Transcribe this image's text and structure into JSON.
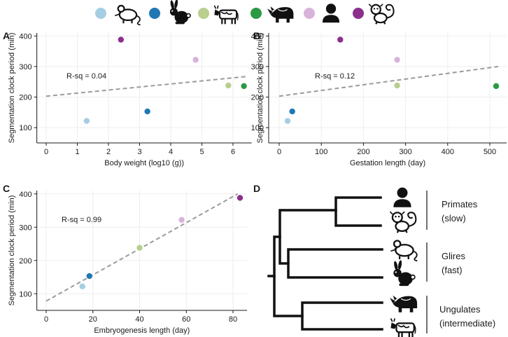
{
  "legend": [
    {
      "species": "mouse",
      "color": "#a6cee3"
    },
    {
      "species": "rabbit",
      "color": "#1f78b4"
    },
    {
      "species": "cattle",
      "color": "#b8cf8e"
    },
    {
      "species": "rhinoceros",
      "color": "#2a9a44"
    },
    {
      "species": "human",
      "color": "#d9b3dc"
    },
    {
      "species": "marmoset",
      "color": "#8b2f8c"
    }
  ],
  "chart_data": [
    {
      "id": "A",
      "panel_label": "A",
      "type": "scatter",
      "xlabel": "Body weight (log10 (g))",
      "ylabel": "Segmentation clock period (min)",
      "xlim": [
        -0.3,
        6.6
      ],
      "ylim": [
        50,
        410
      ],
      "xticks": [
        0,
        1,
        2,
        3,
        4,
        5,
        6
      ],
      "yticks": [
        100,
        200,
        300,
        400
      ],
      "annotation": "R-sq = 0.04",
      "trendline": [
        [
          0,
          203
        ],
        [
          6.4,
          267
        ]
      ],
      "points": [
        {
          "species": "mouse",
          "x": 1.3,
          "y": 122
        },
        {
          "species": "rabbit",
          "x": 3.25,
          "y": 153
        },
        {
          "species": "cattle",
          "x": 5.85,
          "y": 238
        },
        {
          "species": "rhinoceros",
          "x": 6.35,
          "y": 236
        },
        {
          "species": "human",
          "x": 4.8,
          "y": 322
        },
        {
          "species": "marmoset",
          "x": 2.4,
          "y": 388
        }
      ]
    },
    {
      "id": "B",
      "panel_label": "B",
      "type": "scatter",
      "xlabel": "Gestation length (day)",
      "ylabel": "Segmentation clock period (min)",
      "xlim": [
        -25,
        540
      ],
      "ylim": [
        50,
        410
      ],
      "xticks": [
        0,
        100,
        200,
        300,
        400,
        500
      ],
      "yticks": [
        100,
        200,
        300,
        400
      ],
      "annotation": "R-sq = 0.12",
      "trendline": [
        [
          0,
          203
        ],
        [
          520,
          300
        ]
      ],
      "points": [
        {
          "species": "mouse",
          "x": 20,
          "y": 122
        },
        {
          "species": "rabbit",
          "x": 31,
          "y": 153
        },
        {
          "species": "cattle",
          "x": 280,
          "y": 238
        },
        {
          "species": "rhinoceros",
          "x": 515,
          "y": 236
        },
        {
          "species": "human",
          "x": 280,
          "y": 322
        },
        {
          "species": "marmoset",
          "x": 145,
          "y": 388
        }
      ]
    },
    {
      "id": "C",
      "panel_label": "C",
      "type": "scatter",
      "xlabel": "Embryogenesis length (day)",
      "ylabel": "Segmentation clock period (min)",
      "xlim": [
        -4,
        86
      ],
      "ylim": [
        50,
        410
      ],
      "xticks": [
        0,
        20,
        40,
        60,
        80
      ],
      "yticks": [
        100,
        200,
        300,
        400
      ],
      "annotation": "R-sq = 0.99",
      "trendline": [
        [
          0,
          78
        ],
        [
          82,
          400
        ]
      ],
      "points": [
        {
          "species": "mouse",
          "x": 15.5,
          "y": 122
        },
        {
          "species": "rabbit",
          "x": 18.5,
          "y": 153
        },
        {
          "species": "cattle",
          "x": 40,
          "y": 238
        },
        {
          "species": "human",
          "x": 58,
          "y": 322
        },
        {
          "species": "marmoset",
          "x": 83,
          "y": 388
        }
      ]
    }
  ],
  "tree": {
    "panel_label": "D",
    "clades": [
      {
        "name": "Primates",
        "speed": "(slow)",
        "members": [
          "human",
          "marmoset"
        ]
      },
      {
        "name": "Glires",
        "speed": "(fast)",
        "members": [
          "mouse",
          "rabbit"
        ]
      },
      {
        "name": "Ungulates",
        "speed": "(intermediate)",
        "members": [
          "rhinoceros",
          "cattle"
        ]
      }
    ]
  }
}
